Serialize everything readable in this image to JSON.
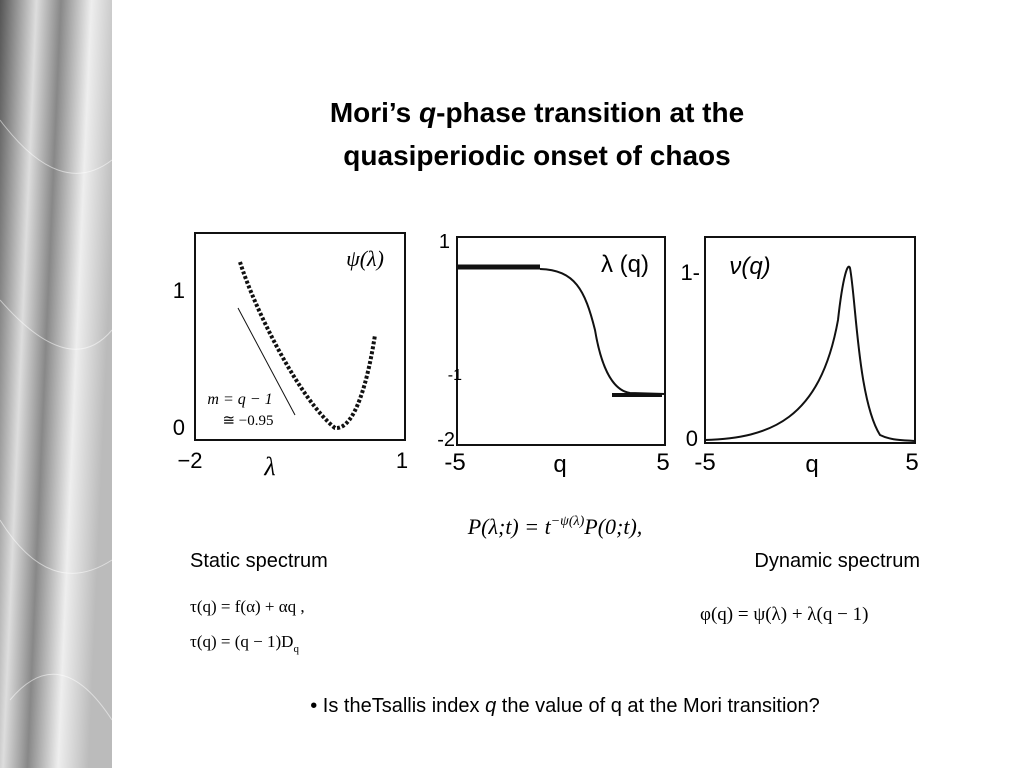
{
  "title": {
    "pre": "Mori’s ",
    "q": "q",
    "post": "-phase transition at the",
    "line2": "quasiperiodic onset of chaos"
  },
  "plots": [
    {
      "label": "ψ(λ)",
      "yticks": [
        "1",
        "0"
      ],
      "xticks": [
        "−2",
        "1"
      ],
      "xlabel": "λ",
      "annotation": [
        "m = q − 1",
        "≅ −0.95"
      ]
    },
    {
      "label": "λ (q)",
      "yticks": [
        "1",
        "-1",
        "-2"
      ],
      "xticks": [
        "-5",
        "q",
        "5"
      ]
    },
    {
      "label": "ν(q)",
      "yticks": [
        "1-",
        "0"
      ],
      "xticks": [
        "-5",
        "q",
        "5"
      ]
    }
  ],
  "formula": {
    "main": "P(λ;t) = t",
    "sup": "−ψ(λ)",
    "rest": "P(0;t),"
  },
  "static": {
    "label": "Static spectrum",
    "eq1": "τ(q) = f(α) + αq ,",
    "eq2": "τ(q) = (q − 1)D",
    "eq2_sub": "q"
  },
  "dynamic": {
    "label": "Dynamic spectrum",
    "eq": "φ(q) = ψ(λ) + λ(q − 1)"
  },
  "bullet": {
    "pre": "• Is theTsallis index ",
    "q": "q",
    "post": " the value of q at the Mori transition?"
  }
}
